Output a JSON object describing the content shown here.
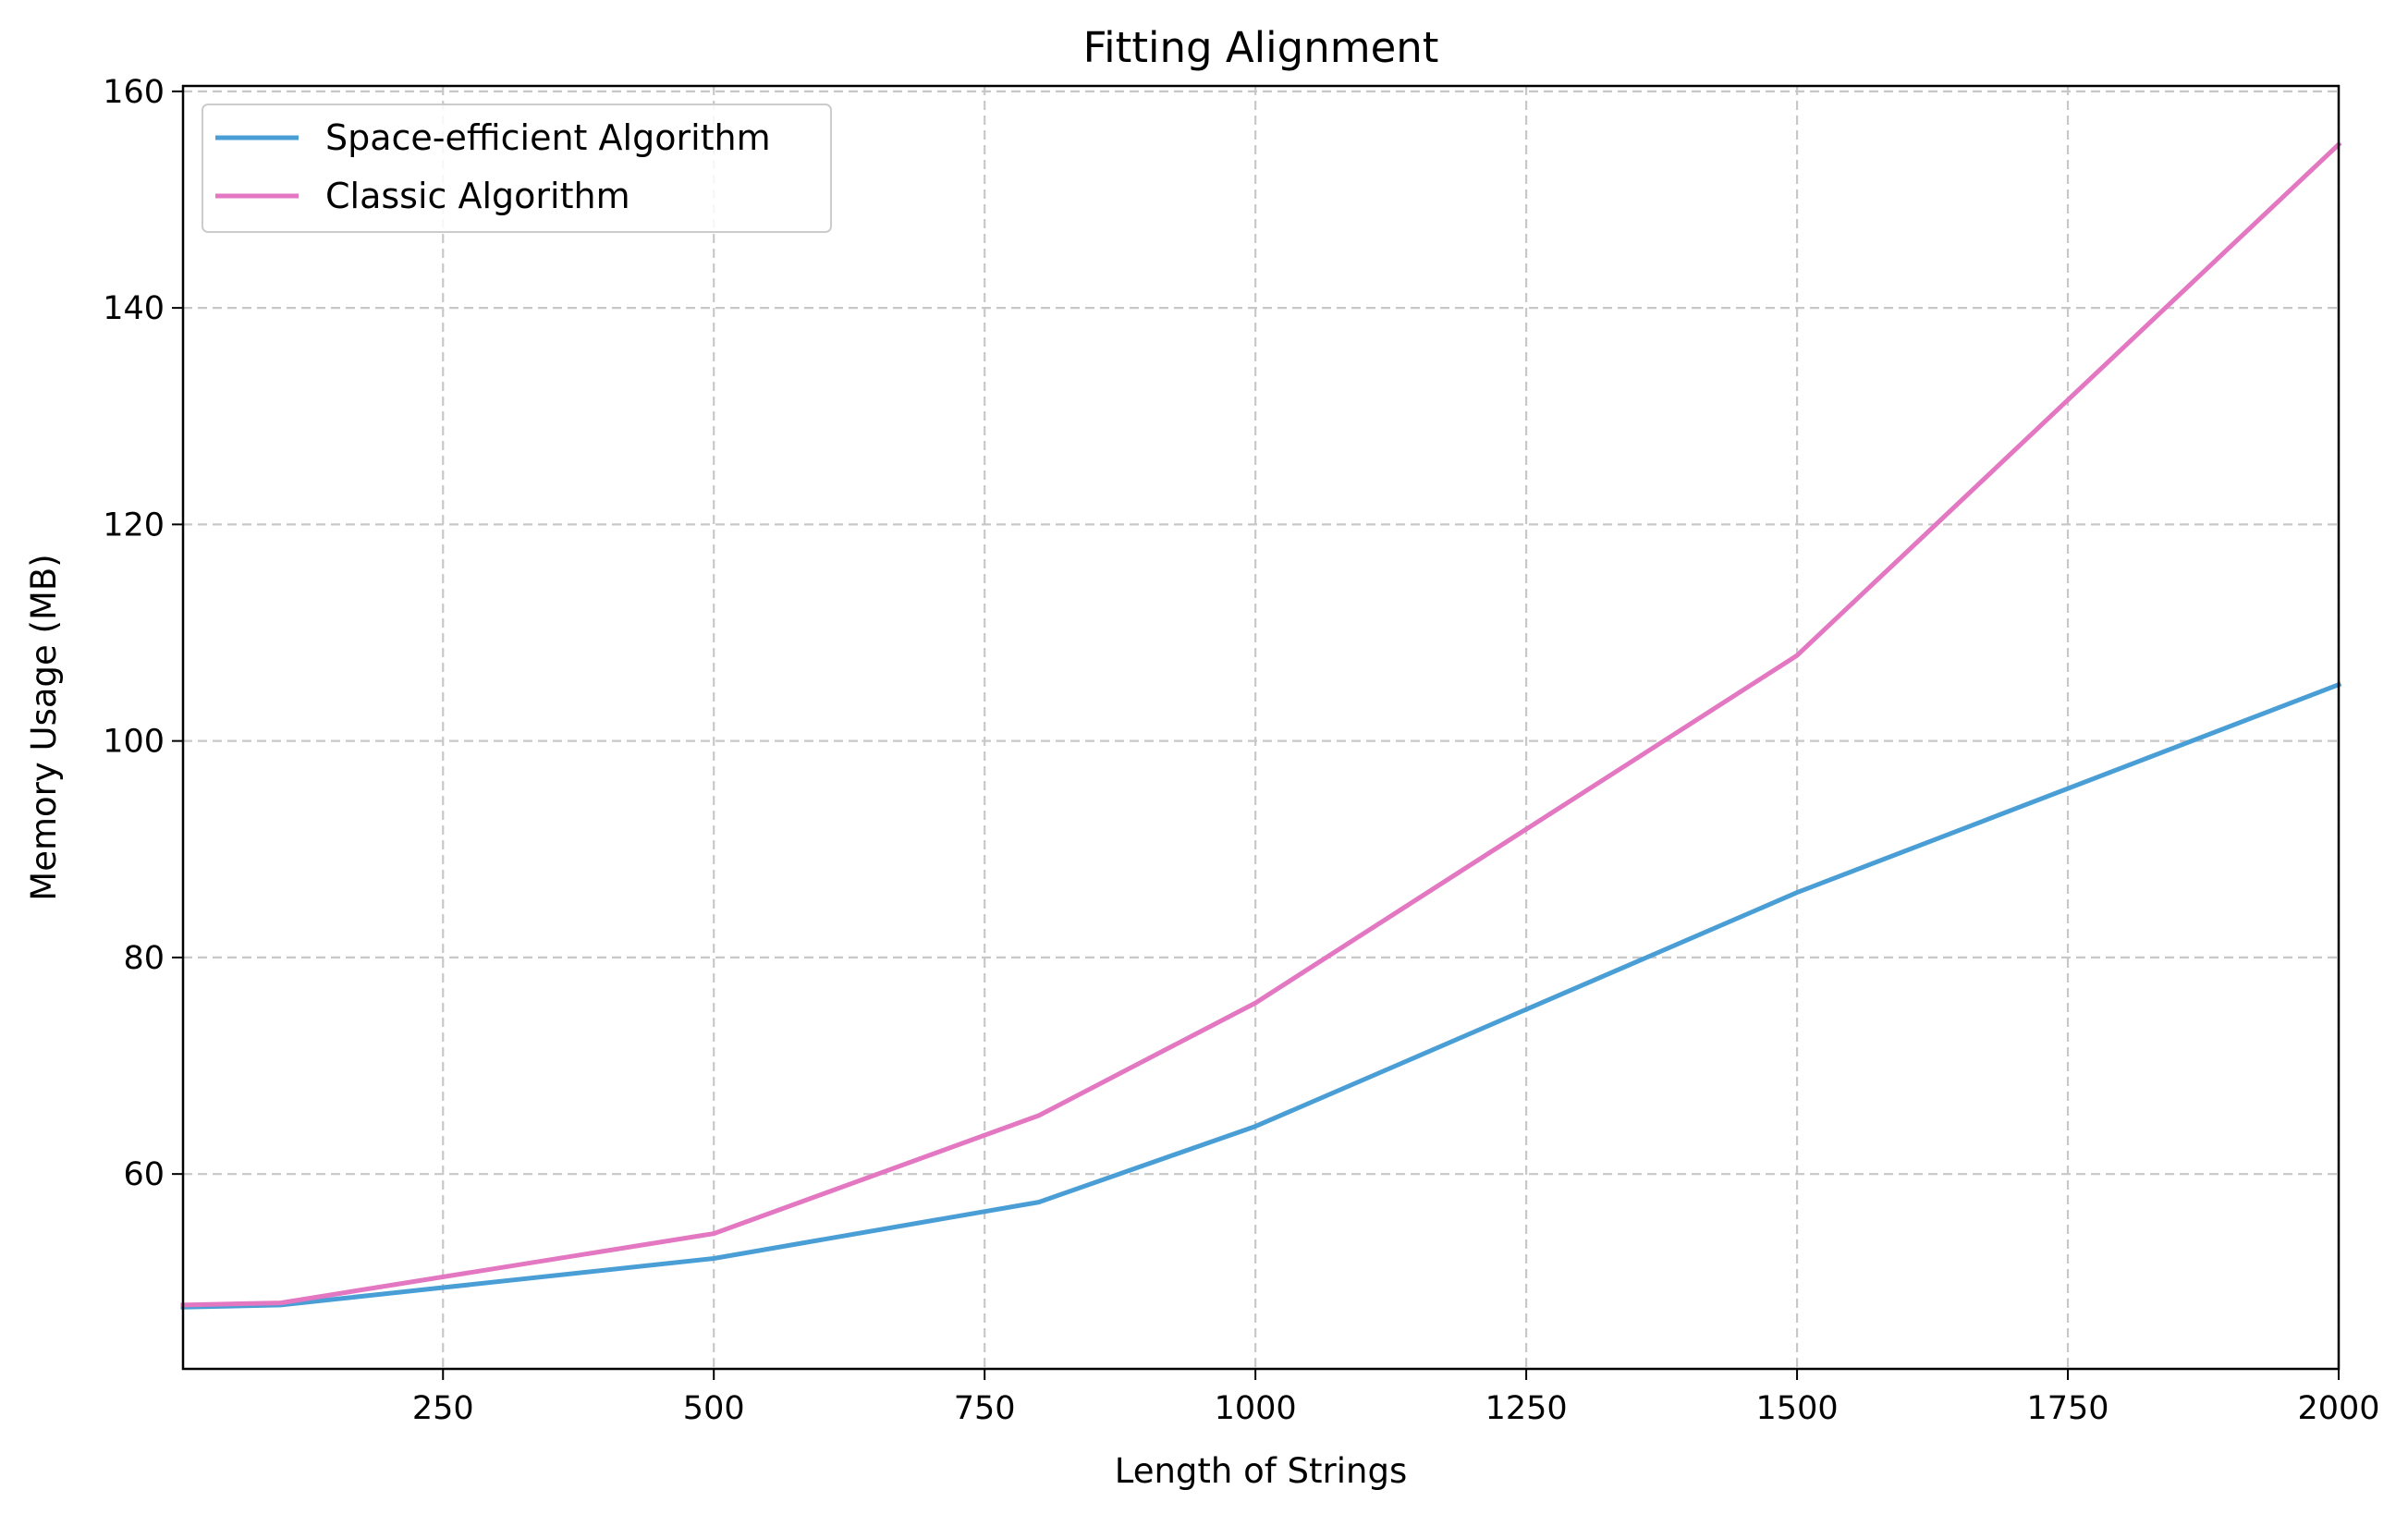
{
  "chart_data": {
    "type": "line",
    "title": "Fitting Alignment",
    "xlabel": "Length of Strings",
    "ylabel": "Memory Usage (MB)",
    "xlim": [
      10,
      2000
    ],
    "ylim": [
      42,
      160.5
    ],
    "xticks": [
      250,
      500,
      750,
      1000,
      1250,
      1500,
      1750,
      2000
    ],
    "yticks": [
      60,
      80,
      100,
      120,
      140,
      160
    ],
    "grid": true,
    "legend_position": "top-left",
    "x": [
      10,
      100,
      500,
      800,
      1000,
      1500,
      2000
    ],
    "series": [
      {
        "name": "Space-efficient Algorithm",
        "color": "#4a9ed6",
        "values": [
          47.7,
          47.9,
          52.2,
          57.4,
          64.4,
          86.0,
          105.2
        ]
      },
      {
        "name": "Classic Algorithm",
        "color": "#e377c2",
        "values": [
          47.9,
          48.1,
          54.5,
          65.4,
          75.8,
          107.9,
          155.1
        ]
      }
    ]
  }
}
